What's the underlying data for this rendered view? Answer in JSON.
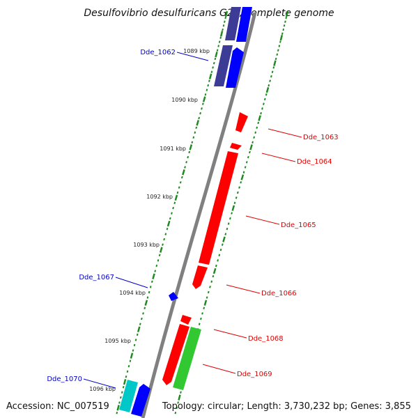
{
  "title": "Desulfovibrio desulfuricans G20, complete genome",
  "accession_text": "Accession: NC_007519",
  "topology_text": "Topology: circular; Length: 3,730,232 bp; Genes: 3,855",
  "colors": {
    "backbone": "#808080",
    "gc_ticks": "#1f8a1f",
    "reverse_label": "#0000c8",
    "forward_label": "#e00000",
    "gene_red": "#ff0000",
    "gene_blue": "#0000ff",
    "gene_darkblue": "#3c3c96",
    "gene_green": "#32c832",
    "gene_cyan": "#00c8c8"
  },
  "kbp_ticks": [
    {
      "label": "1089 kbp"
    },
    {
      "label": "1090 kbp"
    },
    {
      "label": "1091 kbp"
    },
    {
      "label": "1092 kbp"
    },
    {
      "label": "1093 kbp"
    },
    {
      "label": "1094 kbp"
    },
    {
      "label": "1095 kbp"
    },
    {
      "label": "1096 kbp"
    }
  ],
  "gene_labels": [
    {
      "name": "Dde_1062",
      "strand": "reverse"
    },
    {
      "name": "Dde_1063",
      "strand": "forward"
    },
    {
      "name": "Dde_1064",
      "strand": "forward"
    },
    {
      "name": "Dde_1065",
      "strand": "forward"
    },
    {
      "name": "Dde_1066",
      "strand": "forward"
    },
    {
      "name": "Dde_1067",
      "strand": "reverse"
    },
    {
      "name": "Dde_1068",
      "strand": "forward"
    },
    {
      "name": "Dde_1069",
      "strand": "forward"
    },
    {
      "name": "Dde_1070",
      "strand": "reverse"
    }
  ]
}
